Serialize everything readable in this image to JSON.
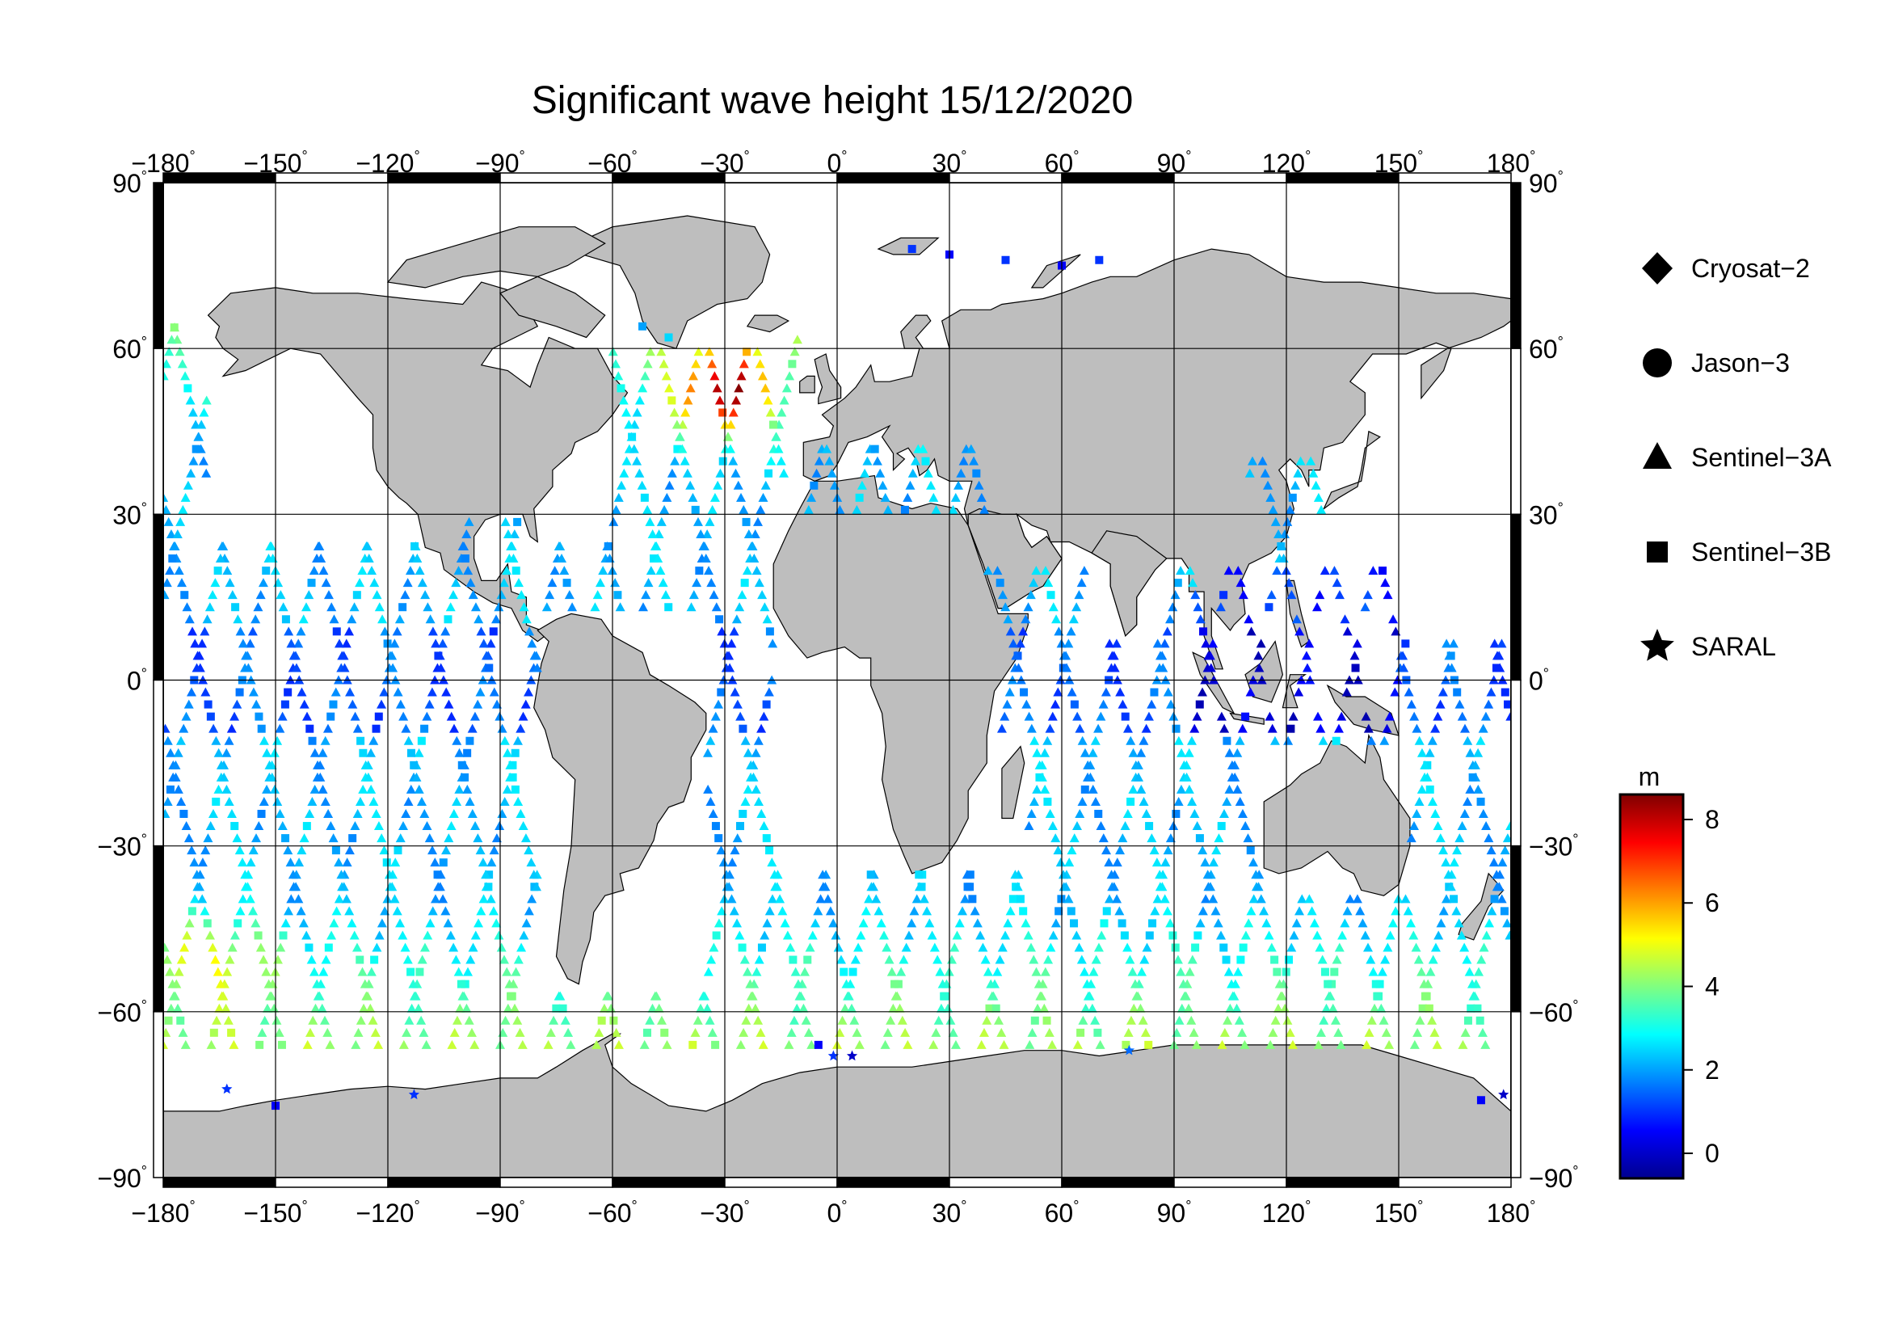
{
  "title": "Significant wave height 15/12/2020",
  "map": {
    "projection": "equirectangular",
    "lon_range": [
      -180,
      180
    ],
    "lat_range": [
      -90,
      90
    ],
    "grid_lon_step": 30,
    "grid_lat_step": 30,
    "land_color": "#bebebe",
    "ocean_color": "#ffffff",
    "grid_color": "#000000"
  },
  "axes": {
    "lon_ticks": [
      "−180",
      "−150",
      "−120",
      "−90",
      "−60",
      "−30",
      "0",
      "30",
      "60",
      "90",
      "120",
      "150",
      "180"
    ],
    "lat_ticks": [
      "90",
      "60",
      "30",
      "0",
      "−30",
      "−60",
      "−90"
    ],
    "degree_mark": "°"
  },
  "legend": {
    "entries": [
      {
        "label": "Cryosat−2",
        "symbol": "diamond"
      },
      {
        "label": "Jason−3",
        "symbol": "circle"
      },
      {
        "label": "Sentinel−3A",
        "symbol": "triangle"
      },
      {
        "label": "Sentinel−3B",
        "symbol": "square"
      },
      {
        "label": "SARAL",
        "symbol": "star"
      }
    ]
  },
  "colorbar": {
    "unit": "m",
    "min": -0.6,
    "max": 8.6,
    "ticks": [
      "0",
      "2",
      "4",
      "6",
      "8"
    ],
    "tick_values": [
      0,
      2,
      4,
      6,
      8
    ],
    "colormap": [
      "#00008f",
      "#0000ff",
      "#0080ff",
      "#00ffff",
      "#80ff80",
      "#ffff00",
      "#ff8000",
      "#ff0000",
      "#800000"
    ]
  }
}
